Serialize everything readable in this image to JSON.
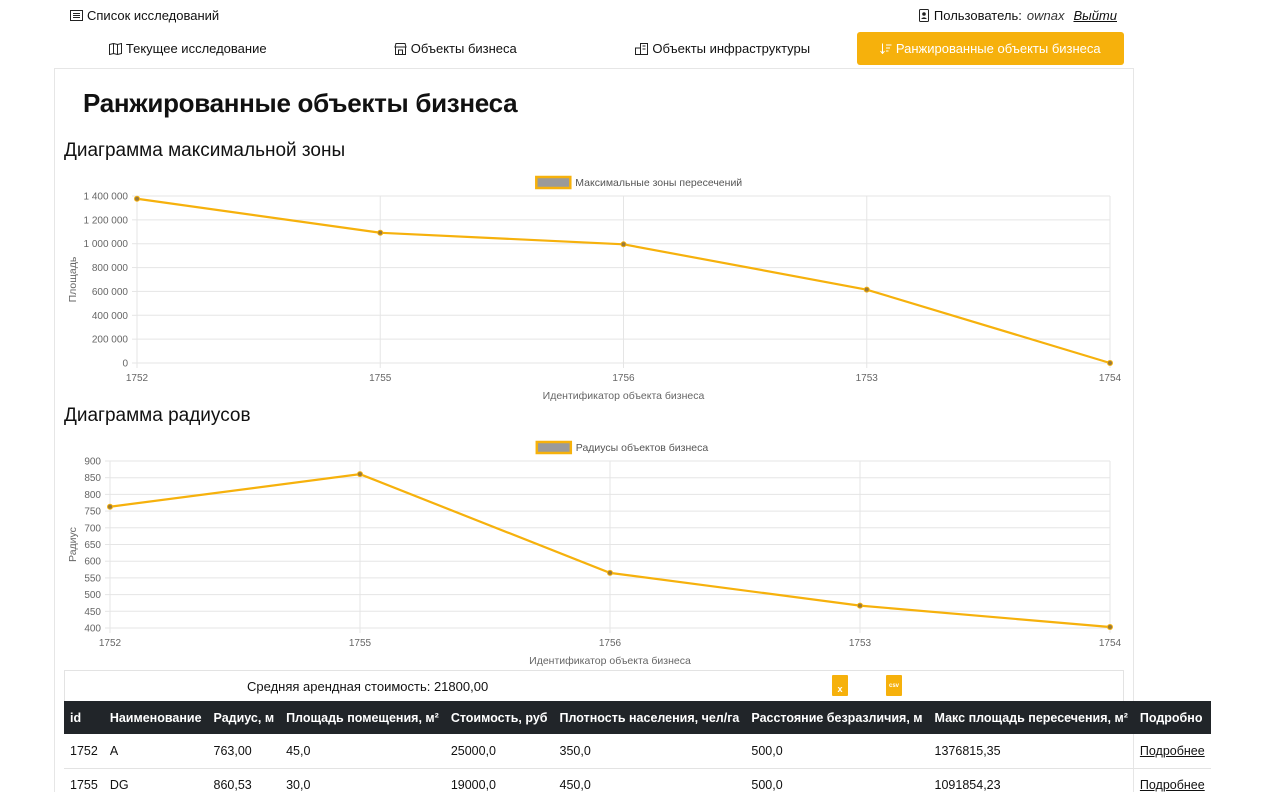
{
  "topbar": {
    "list_link": "Список исследований",
    "user_label": "Пользователь:",
    "user_name": "ownax",
    "logout": "Выйти"
  },
  "tabs": [
    {
      "label": "Текущее исследование",
      "icon": "map-icon",
      "active": false
    },
    {
      "label": "Объекты бизнеса",
      "icon": "shop-icon",
      "active": false
    },
    {
      "label": "Объекты инфраструктуры",
      "icon": "buildings-icon",
      "active": false
    },
    {
      "label": "Ранжированные объекты бизнеса",
      "icon": "sort-icon",
      "active": true
    }
  ],
  "page_title": "Ранжированные объекты бизнеса",
  "sections": {
    "max_zone": "Диаграмма максимальной зоны",
    "radii": "Диаграмма радиусов"
  },
  "chart_data": [
    {
      "type": "line",
      "categories": [
        "1752",
        "1755",
        "1756",
        "1753",
        "1754"
      ],
      "series": [
        {
          "name": "Максимальные зоны пересечений",
          "values": [
            1376815.35,
            1091854.23,
            995000,
            615000,
            0
          ]
        }
      ],
      "xlabel": "Идентификатор объекта бизнеса",
      "ylabel": "Площадь",
      "ylim": [
        0,
        1400000
      ],
      "yticks": [
        0,
        200000,
        400000,
        600000,
        800000,
        1000000,
        1200000,
        1400000
      ],
      "ytick_labels": [
        "0",
        "200 000",
        "400 000",
        "600 000",
        "800 000",
        "1 000 000",
        "1 200 000",
        "1 400 000"
      ],
      "color": "#f6b10c",
      "legend": "top-center",
      "grid": true
    },
    {
      "type": "line",
      "categories": [
        "1752",
        "1755",
        "1756",
        "1753",
        "1754"
      ],
      "series": [
        {
          "name": "Радиусы объектов бизнеса",
          "values": [
            763.0,
            860.53,
            565,
            467,
            403
          ]
        }
      ],
      "xlabel": "Идентификатор объекта бизнеса",
      "ylabel": "Радиус",
      "ylim": [
        400,
        900
      ],
      "yticks": [
        400,
        450,
        500,
        550,
        600,
        650,
        700,
        750,
        800,
        850,
        900
      ],
      "ytick_labels": [
        "400",
        "450",
        "500",
        "550",
        "600",
        "650",
        "700",
        "750",
        "800",
        "850",
        "900"
      ],
      "color": "#f6b10c",
      "legend": "top-center",
      "grid": true
    }
  ],
  "table": {
    "avg_rent": "Средняя арендная стоимость: 21800,00",
    "export_xls": "x",
    "export_csv": "csv",
    "columns": [
      "id",
      "Наименование",
      "Радиус, м",
      "Площадь помещения, м²",
      "Стоимость, руб",
      "Плотность населения, чел/га",
      "Расстояние безразличия, м",
      "Макс площадь пересечения, м²",
      "Подробно"
    ],
    "rows": [
      [
        "1752",
        "A",
        "763,00",
        "45,0",
        "25000,0",
        "350,0",
        "500,0",
        "1376815,35",
        "Подробнее"
      ],
      [
        "1755",
        "DG",
        "860,53",
        "30,0",
        "19000,0",
        "450,0",
        "500,0",
        "1091854,23",
        "Подробнее"
      ]
    ]
  }
}
